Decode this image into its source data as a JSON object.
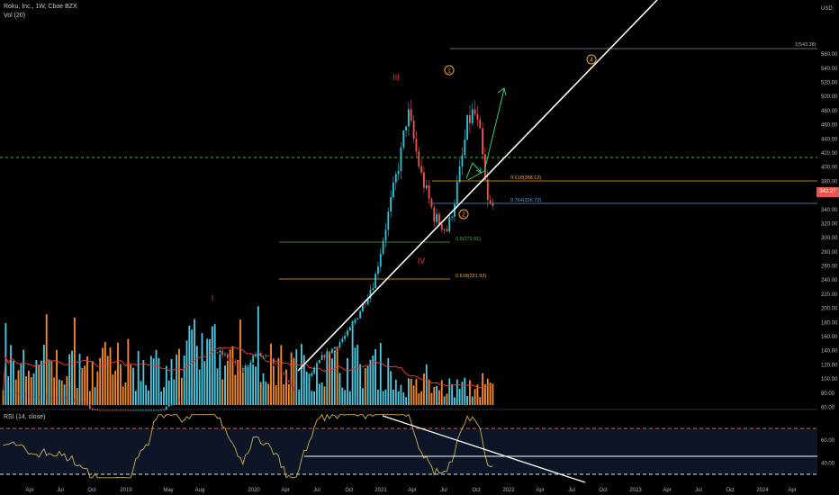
{
  "header": {
    "title": "Roku, Inc., 1W, Cboe BZX",
    "volume_label": "Vol (20)",
    "rsi_label": "RSI (14, close)",
    "currency": "USD"
  },
  "colors": {
    "background": "#000000",
    "up": "#26c6da",
    "down": "#ef5350",
    "volume_up": "#4dc8e0",
    "volume_down": "#f58a2a",
    "trendline": "#ffffff",
    "wave_orange": "#f5a623",
    "wave_red": "#e53935",
    "rsi_line": "#c9b458",
    "rsi_band": "#0d1526",
    "rsi_level": "#e05a3a",
    "fib_green": "#4caf50",
    "fib_blue": "#4fa3e0",
    "projection": "#2ecc71"
  },
  "price_axis": {
    "ticks": [
      "560.00",
      "540.00",
      "520.00",
      "500.00",
      "480.00",
      "460.00",
      "440.00",
      "420.00",
      "400.00",
      "380.00",
      "360.00",
      "340.00",
      "320.00",
      "300.00",
      "280.00",
      "260.00",
      "240.00",
      "220.00",
      "200.00",
      "180.00",
      "160.00",
      "140.00",
      "120.00",
      "100.00",
      "80.00",
      "60.00"
    ],
    "current_price": "342.27"
  },
  "rsi_axis": {
    "ticks": [
      "60.00",
      "40.00"
    ]
  },
  "time_axis": {
    "ticks": [
      "Apr",
      "Jul",
      "Oct",
      "2019",
      "May",
      "Aug",
      "2020",
      "Apr",
      "Jul",
      "Oct",
      "2021",
      "Apr",
      "Jul",
      "Oct",
      "2022",
      "Apr",
      "Jul",
      "Oct",
      "2023",
      "Apr",
      "Jul",
      "Oct",
      "2024",
      "Apr"
    ]
  },
  "annotations": {
    "fib_top": "1(543.38)",
    "fib_0618_upper": "0.618(358.12)",
    "fib_0764": "0.764(326.72)",
    "fib_05": "0.5(272.61)",
    "fib_0618_lower": "0.618(221.93)",
    "wave_I": "I",
    "wave_III": "III",
    "wave_IV": "IV",
    "wave_1": "1",
    "wave_2": "2",
    "wave_4": "4"
  },
  "chart_data": {
    "type": "candlestick",
    "title": "Roku, Inc., 1W, Cboe BZX",
    "ylabel": "USD",
    "ylim": [
      56,
      570
    ],
    "trend_price": [
      [
        2018.05,
        80
      ],
      [
        2018.3,
        75
      ],
      [
        2018.55,
        72
      ],
      [
        2018.7,
        60
      ],
      [
        2018.85,
        45
      ],
      [
        2019.0,
        32
      ],
      [
        2019.15,
        40
      ],
      [
        2019.3,
        65
      ],
      [
        2019.45,
        75
      ],
      [
        2019.55,
        105
      ],
      [
        2019.65,
        140
      ],
      [
        2019.75,
        130
      ],
      [
        2019.85,
        110
      ],
      [
        2019.95,
        135
      ],
      [
        2020.05,
        130
      ],
      [
        2020.15,
        110
      ],
      [
        2020.25,
        80
      ],
      [
        2020.35,
        100
      ],
      [
        2020.45,
        130
      ],
      [
        2020.55,
        145
      ],
      [
        2020.65,
        165
      ],
      [
        2020.75,
        200
      ],
      [
        2020.85,
        240
      ],
      [
        2020.95,
        330
      ],
      [
        2021.05,
        420
      ],
      [
        2021.1,
        480
      ],
      [
        2021.2,
        390
      ],
      [
        2021.3,
        330
      ],
      [
        2021.4,
        310
      ],
      [
        2021.45,
        350
      ],
      [
        2021.5,
        400
      ],
      [
        2021.55,
        460
      ],
      [
        2021.6,
        480
      ],
      [
        2021.65,
        440
      ],
      [
        2021.7,
        350
      ],
      [
        2021.74,
        342.27
      ]
    ],
    "rsi_levels": [
      70,
      30
    ],
    "rsi_ylim": [
      25,
      85
    ]
  }
}
